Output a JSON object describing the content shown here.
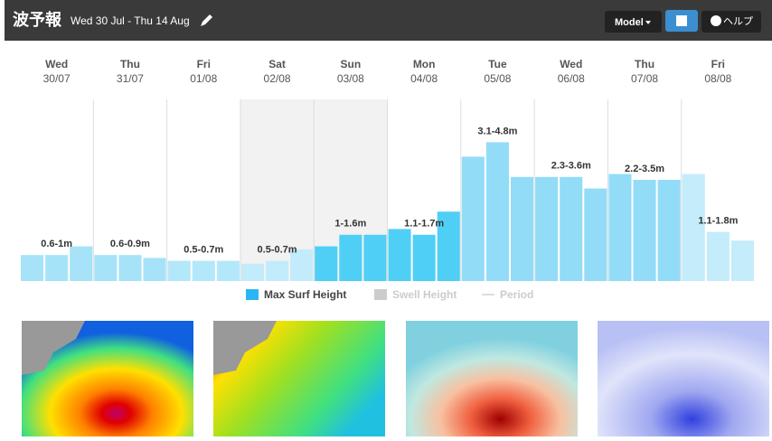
{
  "header": {
    "title": "波予報",
    "date_range": "Wed 30 Jul - Thu 14 Aug",
    "model_button": "Model",
    "help_button": "ヘルプ"
  },
  "chart_data": {
    "type": "bar",
    "categories": [
      "Wed",
      "Thu",
      "Fri",
      "Sat",
      "Sun",
      "Mon",
      "Tue",
      "Wed",
      "Thu",
      "Fri"
    ],
    "dates": [
      "30/07",
      "31/07",
      "01/08",
      "02/08",
      "03/08",
      "04/08",
      "05/08",
      "06/08",
      "07/08",
      "08/08"
    ],
    "values": [
      [
        0.9,
        0.9,
        1.2
      ],
      [
        0.9,
        0.9,
        0.8
      ],
      [
        0.7,
        0.7,
        0.7
      ],
      [
        0.6,
        0.7,
        1.1
      ],
      [
        1.2,
        1.6,
        1.6
      ],
      [
        1.8,
        1.6,
        2.4
      ],
      [
        4.3,
        4.8,
        3.6
      ],
      [
        3.6,
        3.6,
        3.2
      ],
      [
        3.7,
        3.5,
        3.5
      ],
      [
        3.7,
        1.7,
        1.4
      ]
    ],
    "value_labels": [
      "0.6-1m",
      "0.6-0.9m",
      "0.5-0.7m",
      "0.5-0.7m",
      "1-1.6m",
      "1.1-1.7m",
      "3.1-4.8m",
      "2.3-3.6m",
      "2.2-3.5m",
      "1.1-1.8m"
    ],
    "colors": [
      "#a6e3f9",
      "#a6e3f9",
      "#b3e8fa",
      "#c2ecfb",
      "#4fcff5",
      "#4fcff5",
      "#93dcf8",
      "#93dcf8",
      "#93dcf8",
      "#c4ecfb"
    ],
    "legend": [
      {
        "name": "Max Surf Height",
        "color": "#29b6f6"
      },
      {
        "name": "Swell Height",
        "color": "#cccccc"
      },
      {
        "name": "Period",
        "color": "#dddddd"
      }
    ]
  }
}
